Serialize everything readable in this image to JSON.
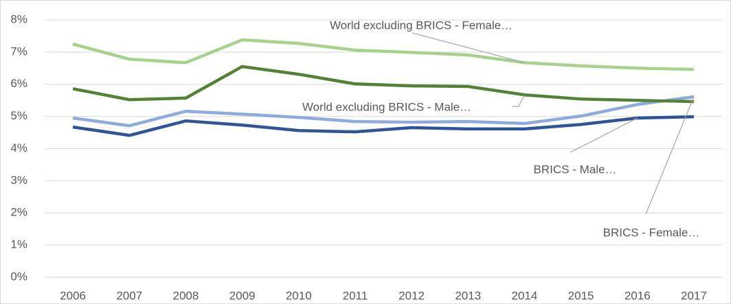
{
  "chart_data": {
    "type": "line",
    "x": [
      "2006",
      "2007",
      "2008",
      "2009",
      "2010",
      "2011",
      "2012",
      "2013",
      "2014",
      "2015",
      "2016",
      "2017"
    ],
    "ylim": [
      0,
      8
    ],
    "yticks": [
      {
        "value": 0,
        "label": "0%"
      },
      {
        "value": 1,
        "label": "1%"
      },
      {
        "value": 2,
        "label": "2%"
      },
      {
        "value": 3,
        "label": "3%"
      },
      {
        "value": 4,
        "label": "4%"
      },
      {
        "value": 5,
        "label": "5%"
      },
      {
        "value": 6,
        "label": "6%"
      },
      {
        "value": 7,
        "label": "7%"
      },
      {
        "value": 8,
        "label": "8%"
      }
    ],
    "grid": true,
    "series": [
      {
        "name": "BRICS - Male…",
        "color": "#2f5597",
        "values": [
          4.67,
          4.41,
          4.86,
          4.73,
          4.56,
          4.52,
          4.65,
          4.61,
          4.61,
          4.75,
          4.95,
          4.99
        ]
      },
      {
        "name": "BRICS - Female…",
        "color": "#8faadc",
        "values": [
          4.95,
          4.71,
          5.16,
          5.07,
          4.97,
          4.84,
          4.82,
          4.84,
          4.78,
          5.01,
          5.37,
          5.61
        ]
      },
      {
        "name": "World excluding BRICS - Male…",
        "color": "#548235",
        "values": [
          5.86,
          5.52,
          5.57,
          6.55,
          6.31,
          6.01,
          5.95,
          5.93,
          5.67,
          5.54,
          5.5,
          5.46
        ]
      },
      {
        "name": "World excluding BRICS - Female…",
        "color": "#a9d18e",
        "values": [
          7.25,
          6.78,
          6.67,
          7.38,
          7.27,
          7.06,
          6.99,
          6.91,
          6.67,
          6.57,
          6.5,
          6.46
        ]
      }
    ]
  }
}
